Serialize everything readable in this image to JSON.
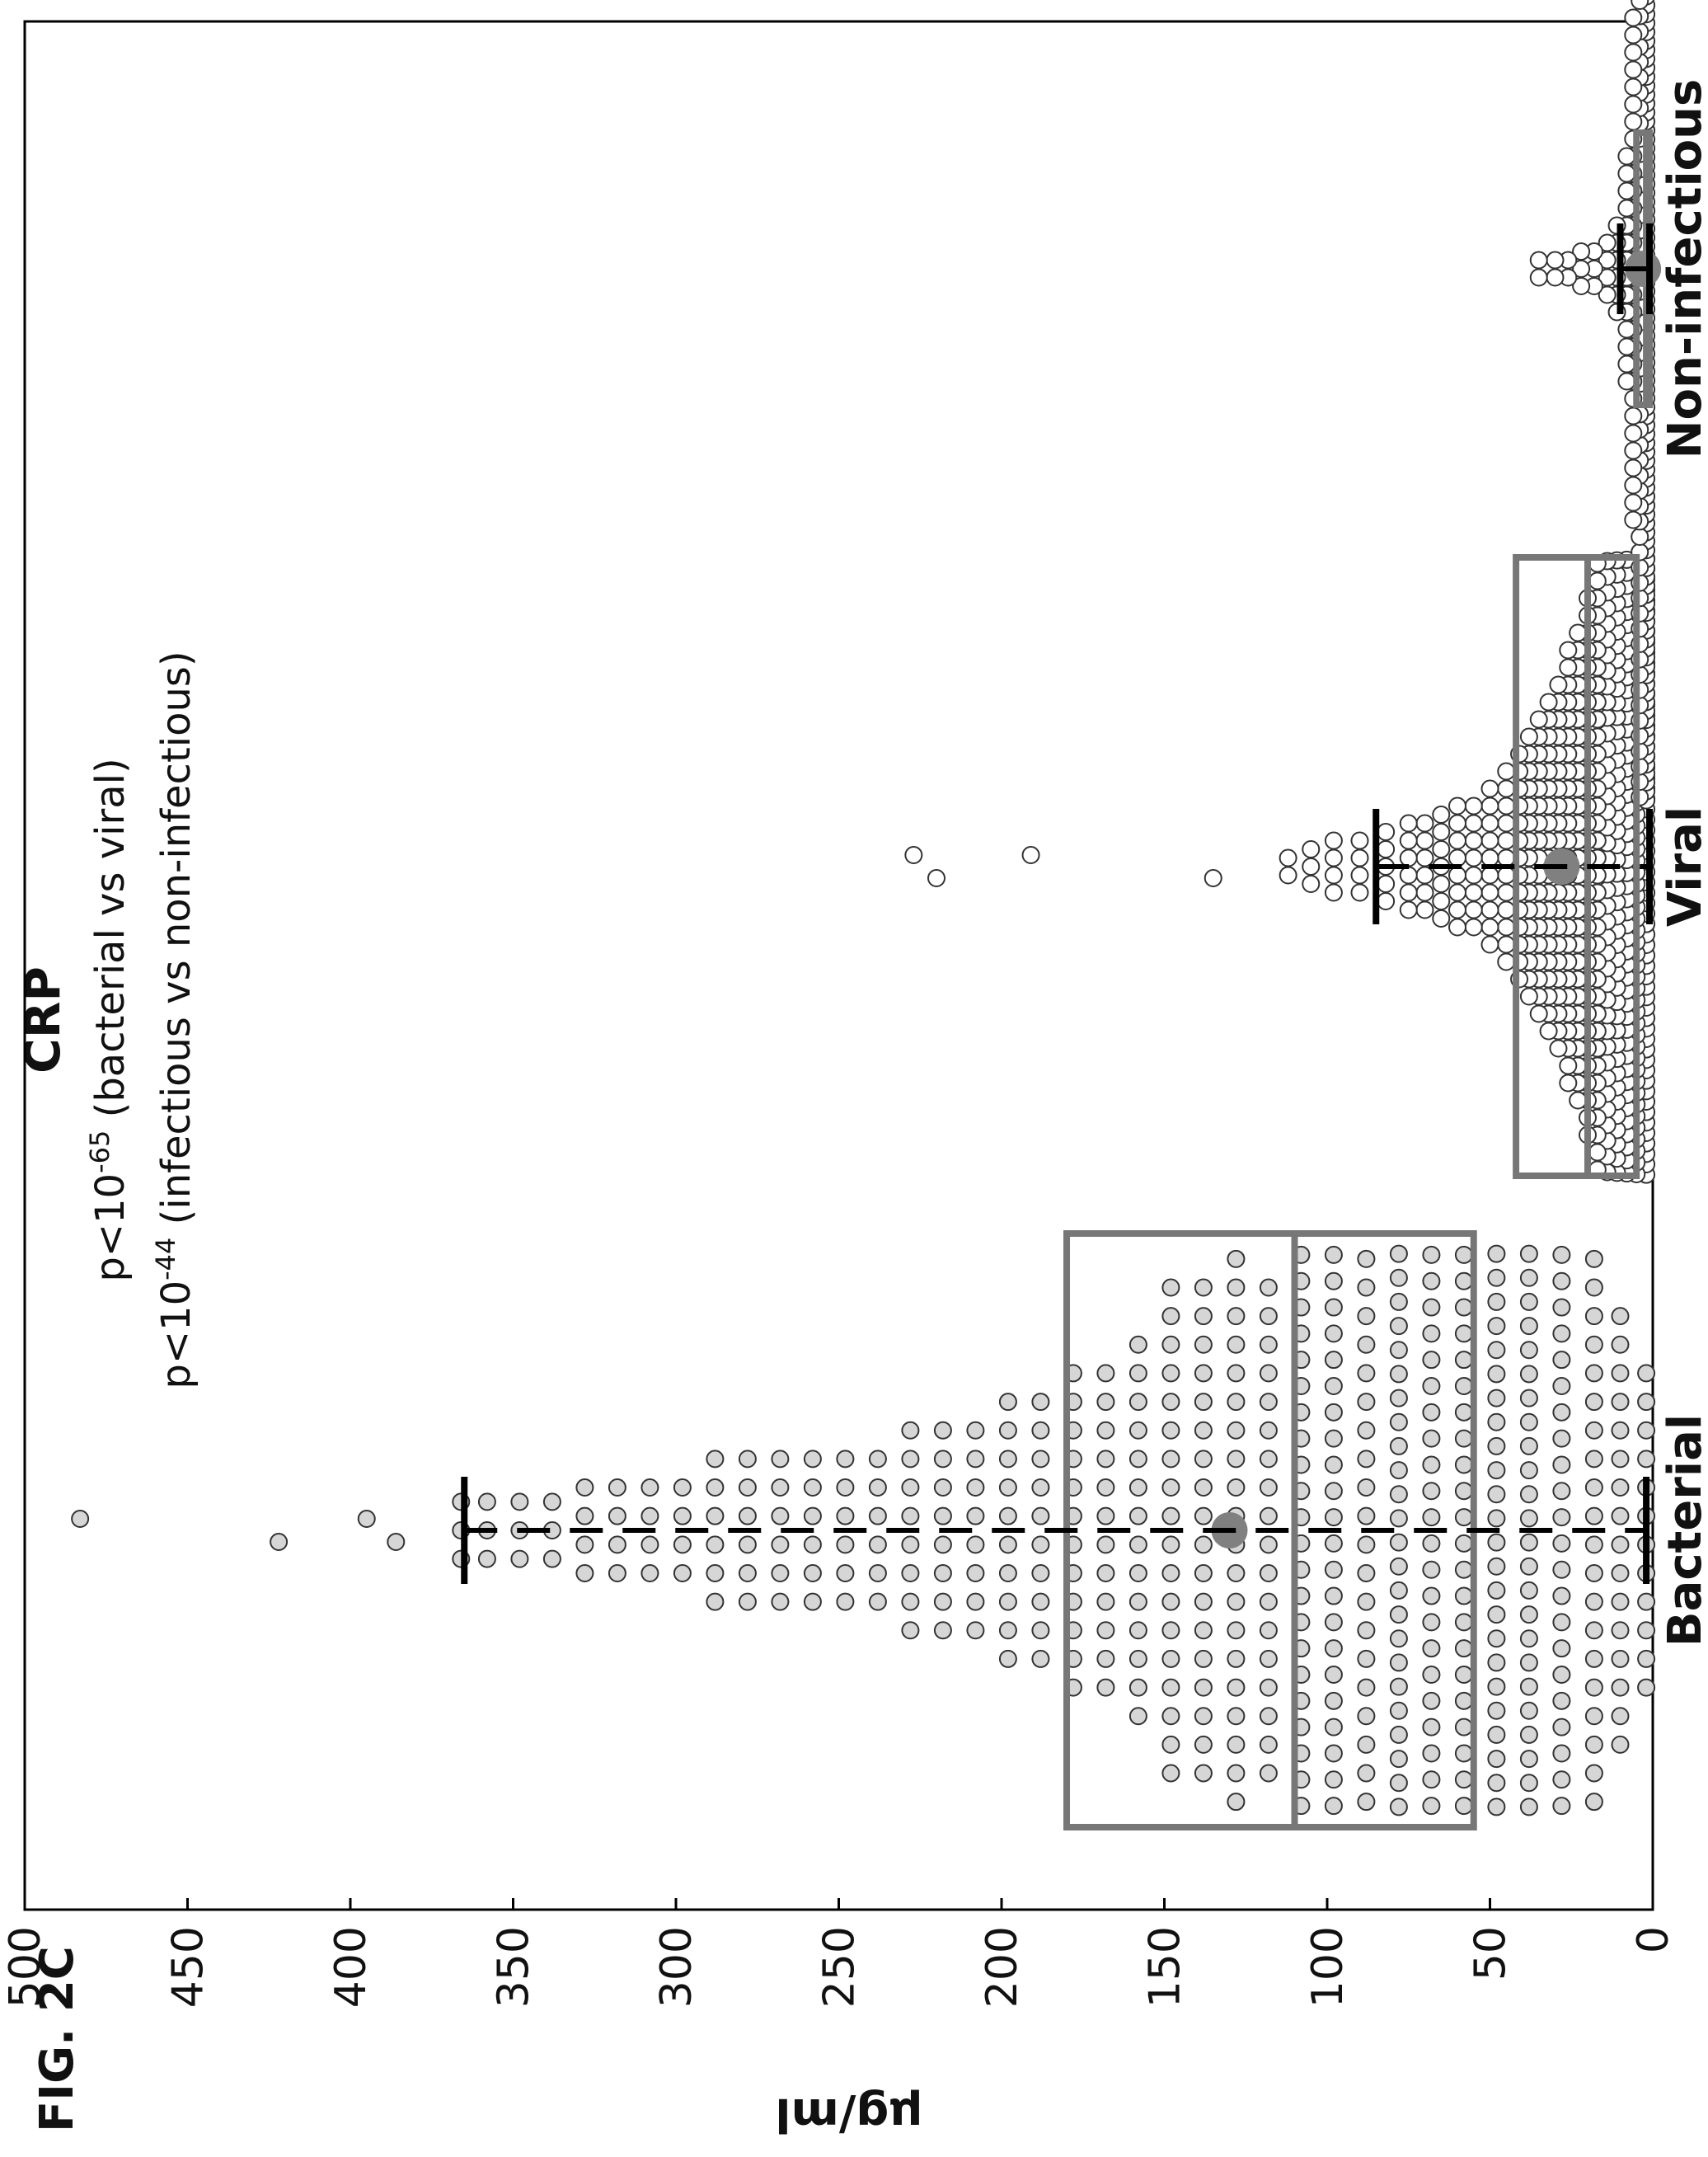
{
  "figure_label": "FIG. 2C",
  "chart_data": {
    "type": "scatter",
    "subtype": "beeswarm-boxplot",
    "orientation": "rotated-90-ccw",
    "title": "CRP",
    "subtitle_lines": [
      {
        "pre": "p<10",
        "exp": "-65",
        "post": " (bacterial vs viral)"
      },
      {
        "pre": "p<10",
        "exp": "-44",
        "post": " (infectious vs non-infectious)"
      }
    ],
    "ylabel": "μg/ml",
    "ylim": [
      0,
      500
    ],
    "yticks": [
      0,
      50,
      100,
      150,
      200,
      250,
      300,
      350,
      400,
      450,
      500
    ],
    "categories": [
      "Bacterial",
      "Viral",
      "Non-infectious"
    ],
    "groups": [
      {
        "name": "Bacterial",
        "box": {
          "q1": 55,
          "median": 110,
          "q3": 180
        },
        "mean": 130,
        "whisker": [
          2,
          365
        ],
        "outliers": [
          386,
          395,
          422,
          483
        ],
        "marker_fill": "#d6d6d6",
        "swarm": [
          {
            "y": 2,
            "n": 12
          },
          {
            "y": 10,
            "n": 16
          },
          {
            "y": 18,
            "n": 20
          },
          {
            "y": 28,
            "n": 22
          },
          {
            "y": 38,
            "n": 24
          },
          {
            "y": 48,
            "n": 24
          },
          {
            "y": 58,
            "n": 22
          },
          {
            "y": 68,
            "n": 22
          },
          {
            "y": 78,
            "n": 24
          },
          {
            "y": 88,
            "n": 20
          },
          {
            "y": 98,
            "n": 22
          },
          {
            "y": 108,
            "n": 22
          },
          {
            "y": 118,
            "n": 18
          },
          {
            "y": 128,
            "n": 20
          },
          {
            "y": 138,
            "n": 18
          },
          {
            "y": 148,
            "n": 18
          },
          {
            "y": 158,
            "n": 14
          },
          {
            "y": 168,
            "n": 12
          },
          {
            "y": 178,
            "n": 12
          },
          {
            "y": 188,
            "n": 10
          },
          {
            "y": 198,
            "n": 10
          },
          {
            "y": 208,
            "n": 8
          },
          {
            "y": 218,
            "n": 8
          },
          {
            "y": 228,
            "n": 8
          },
          {
            "y": 238,
            "n": 6
          },
          {
            "y": 248,
            "n": 6
          },
          {
            "y": 258,
            "n": 6
          },
          {
            "y": 268,
            "n": 6
          },
          {
            "y": 278,
            "n": 6
          },
          {
            "y": 288,
            "n": 6
          },
          {
            "y": 298,
            "n": 4
          },
          {
            "y": 308,
            "n": 4
          },
          {
            "y": 318,
            "n": 4
          },
          {
            "y": 328,
            "n": 4
          },
          {
            "y": 338,
            "n": 3
          },
          {
            "y": 348,
            "n": 3
          },
          {
            "y": 358,
            "n": 3
          },
          {
            "y": 366,
            "n": 3
          }
        ]
      },
      {
        "name": "Viral",
        "box": {
          "q1": 5,
          "median": 20,
          "q3": 42
        },
        "mean": 28,
        "whisker": [
          1,
          85
        ],
        "outliers": [
          135,
          191,
          220,
          227
        ],
        "marker_fill": "#ffffff",
        "swarm": [
          {
            "y": 2,
            "n": 60
          },
          {
            "y": 5,
            "n": 54
          },
          {
            "y": 8,
            "n": 48
          },
          {
            "y": 11,
            "n": 44
          },
          {
            "y": 14,
            "n": 40
          },
          {
            "y": 17,
            "n": 36
          },
          {
            "y": 20,
            "n": 32
          },
          {
            "y": 23,
            "n": 28
          },
          {
            "y": 26,
            "n": 26
          },
          {
            "y": 29,
            "n": 22
          },
          {
            "y": 32,
            "n": 20
          },
          {
            "y": 35,
            "n": 18
          },
          {
            "y": 38,
            "n": 16
          },
          {
            "y": 41,
            "n": 14
          },
          {
            "y": 45,
            "n": 12
          },
          {
            "y": 50,
            "n": 10
          },
          {
            "y": 55,
            "n": 8
          },
          {
            "y": 60,
            "n": 8
          },
          {
            "y": 65,
            "n": 7
          },
          {
            "y": 70,
            "n": 6
          },
          {
            "y": 75,
            "n": 6
          },
          {
            "y": 82,
            "n": 5
          },
          {
            "y": 90,
            "n": 4
          },
          {
            "y": 98,
            "n": 4
          },
          {
            "y": 105,
            "n": 3
          },
          {
            "y": 112,
            "n": 2
          }
        ]
      },
      {
        "name": "Non-infectious",
        "box": {
          "q1": 1,
          "median": 2,
          "q3": 5
        },
        "mean": 3,
        "whisker": [
          1,
          10
        ],
        "outliers": [],
        "marker_fill": "#ffffff",
        "swarm": [
          {
            "y": 2,
            "n": 120
          },
          {
            "y": 4,
            "n": 70
          },
          {
            "y": 6,
            "n": 30
          },
          {
            "y": 8,
            "n": 14
          },
          {
            "y": 11,
            "n": 6
          },
          {
            "y": 14,
            "n": 4
          },
          {
            "y": 18,
            "n": 3
          },
          {
            "y": 22,
            "n": 3
          },
          {
            "y": 26,
            "n": 2
          },
          {
            "y": 30,
            "n": 2
          },
          {
            "y": 35,
            "n": 2
          }
        ]
      }
    ],
    "colors": {
      "box": "#777777",
      "mean": "#808080",
      "whisker": "#000000",
      "axis": "#000000"
    }
  }
}
